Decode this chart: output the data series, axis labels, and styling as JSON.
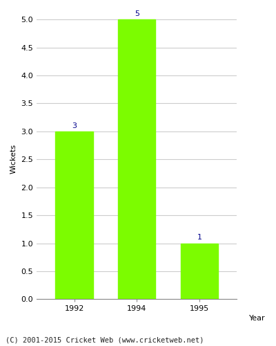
{
  "years": [
    "1992",
    "1994",
    "1995"
  ],
  "wickets": [
    3,
    5,
    1
  ],
  "bar_color": "#7CFC00",
  "bar_width": 0.6,
  "xlabel": "Year",
  "ylabel": "Wickets",
  "ylim_max": 5.0,
  "yticks": [
    0.0,
    0.5,
    1.0,
    1.5,
    2.0,
    2.5,
    3.0,
    3.5,
    4.0,
    4.5,
    5.0
  ],
  "label_color": "#00008B",
  "label_fontsize": 8,
  "axis_label_fontsize": 8,
  "tick_fontsize": 8,
  "footer_text": "(C) 2001-2015 Cricket Web (www.cricketweb.net)",
  "footer_fontsize": 7.5,
  "background_color": "#ffffff",
  "plot_background_color": "#ffffff",
  "grid_color": "#cccccc",
  "spine_color": "#888888"
}
